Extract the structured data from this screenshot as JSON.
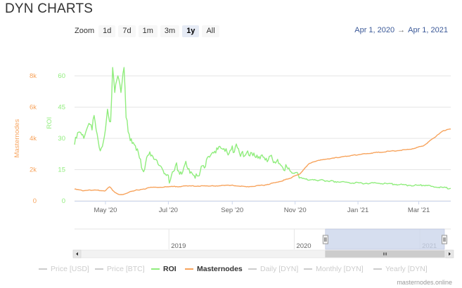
{
  "page_title": "DYN CHARTS",
  "zoom": {
    "label": "Zoom",
    "buttons": [
      "1d",
      "7d",
      "1m",
      "3m",
      "1y",
      "All"
    ],
    "active": "1y"
  },
  "range": {
    "from": "Apr 1, 2020",
    "arrow": "→",
    "to": "Apr 1, 2021"
  },
  "colors": {
    "roi": "#90ed7d",
    "masternodes": "#f7a35c",
    "navigator_mask": "#ccd6eb"
  },
  "chart_data": {
    "type": "line",
    "x_labels": [
      "May '20",
      "Jul '20",
      "Sep '20",
      "Nov '20",
      "Jan '21",
      "Mar '21"
    ],
    "x_range": [
      "2020-04-01",
      "2021-04-01"
    ],
    "y_axes": [
      {
        "id": "masternodes",
        "title": "Masternodes",
        "ticks": [
          "0",
          "2k",
          "4k",
          "6k",
          "8k"
        ],
        "range": [
          0,
          8000
        ]
      },
      {
        "id": "roi",
        "title": "ROI",
        "ticks": [
          "0",
          "15",
          "30",
          "45",
          "60"
        ],
        "range": [
          0,
          60
        ]
      }
    ],
    "grid": true,
    "series": [
      {
        "name": "ROI",
        "axis": "roi",
        "points": [
          [
            "2020-04-01",
            27
          ],
          [
            "2020-04-05",
            33
          ],
          [
            "2020-04-10",
            30
          ],
          [
            "2020-04-14",
            36
          ],
          [
            "2020-04-18",
            34
          ],
          [
            "2020-04-20",
            41
          ],
          [
            "2020-04-23",
            32
          ],
          [
            "2020-04-26",
            24
          ],
          [
            "2020-04-30",
            31
          ],
          [
            "2020-05-03",
            44
          ],
          [
            "2020-05-06",
            38
          ],
          [
            "2020-05-08",
            64
          ],
          [
            "2020-05-10",
            52
          ],
          [
            "2020-05-13",
            60
          ],
          [
            "2020-05-16",
            52
          ],
          [
            "2020-05-19",
            64
          ],
          [
            "2020-05-21",
            40
          ],
          [
            "2020-05-24",
            32
          ],
          [
            "2020-05-28",
            28
          ],
          [
            "2020-06-01",
            25
          ],
          [
            "2020-06-04",
            20
          ],
          [
            "2020-06-07",
            14
          ],
          [
            "2020-06-12",
            22
          ],
          [
            "2020-06-17",
            20
          ],
          [
            "2020-06-22",
            17
          ],
          [
            "2020-06-27",
            13
          ],
          [
            "2020-07-03",
            10
          ],
          [
            "2020-07-08",
            17
          ],
          [
            "2020-07-13",
            14
          ],
          [
            "2020-07-18",
            19
          ],
          [
            "2020-07-23",
            14
          ],
          [
            "2020-07-29",
            12
          ],
          [
            "2020-08-04",
            17
          ],
          [
            "2020-08-10",
            21
          ],
          [
            "2020-08-16",
            23
          ],
          [
            "2020-08-22",
            25
          ],
          [
            "2020-08-28",
            22
          ],
          [
            "2020-09-04",
            26
          ],
          [
            "2020-09-10",
            23
          ],
          [
            "2020-09-16",
            24
          ],
          [
            "2020-09-22",
            23
          ],
          [
            "2020-10-01",
            21
          ],
          [
            "2020-10-10",
            20
          ],
          [
            "2020-10-20",
            16
          ],
          [
            "2020-10-28",
            14
          ],
          [
            "2020-11-05",
            11
          ],
          [
            "2020-11-15",
            10
          ],
          [
            "2020-11-25",
            10
          ],
          [
            "2020-12-05",
            9.5
          ],
          [
            "2020-12-20",
            9
          ],
          [
            "2021-01-05",
            8.5
          ],
          [
            "2021-01-20",
            8.5
          ],
          [
            "2021-02-05",
            8
          ],
          [
            "2021-02-20",
            7.5
          ],
          [
            "2021-03-05",
            7.5
          ],
          [
            "2021-03-20",
            6.5
          ],
          [
            "2021-04-01",
            6
          ]
        ]
      },
      {
        "name": "Masternodes",
        "axis": "masternodes",
        "points": [
          [
            "2020-04-01",
            750
          ],
          [
            "2020-04-10",
            650
          ],
          [
            "2020-04-20",
            700
          ],
          [
            "2020-05-01",
            650
          ],
          [
            "2020-05-05",
            900
          ],
          [
            "2020-05-10",
            550
          ],
          [
            "2020-05-15",
            400
          ],
          [
            "2020-05-20",
            450
          ],
          [
            "2020-05-25",
            600
          ],
          [
            "2020-06-01",
            700
          ],
          [
            "2020-06-08",
            750
          ],
          [
            "2020-06-12",
            850
          ],
          [
            "2020-07-01",
            900
          ],
          [
            "2020-07-20",
            950
          ],
          [
            "2020-08-10",
            950
          ],
          [
            "2020-08-31",
            1000
          ],
          [
            "2020-09-15",
            900
          ],
          [
            "2020-10-01",
            1000
          ],
          [
            "2020-10-15",
            1200
          ],
          [
            "2020-10-25",
            1400
          ],
          [
            "2020-11-05",
            1700
          ],
          [
            "2020-11-15",
            2400
          ],
          [
            "2020-11-25",
            2600
          ],
          [
            "2020-12-05",
            2700
          ],
          [
            "2020-12-15",
            2800
          ],
          [
            "2020-12-25",
            2900
          ],
          [
            "2021-01-05",
            3000
          ],
          [
            "2021-01-20",
            3100
          ],
          [
            "2021-02-05",
            3200
          ],
          [
            "2021-02-20",
            3300
          ],
          [
            "2021-03-05",
            3500
          ],
          [
            "2021-03-15",
            4000
          ],
          [
            "2021-03-25",
            4500
          ],
          [
            "2021-04-01",
            4600
          ]
        ]
      }
    ],
    "navigator": {
      "labels": [
        "2019",
        "2020",
        "2021"
      ],
      "label_dates": [
        "2019-01-01",
        "2020-01-01",
        "2021-01-01"
      ],
      "range": [
        "2018-04-01",
        "2021-04-01"
      ],
      "selected": [
        "2020-04-01",
        "2021-04-01"
      ]
    },
    "legend": [
      {
        "name": "Price [USD]",
        "visible": false
      },
      {
        "name": "Price [BTC]",
        "visible": false
      },
      {
        "name": "ROI",
        "visible": true,
        "color": "#90ed7d"
      },
      {
        "name": "Masternodes",
        "visible": true,
        "color": "#f7a35c"
      },
      {
        "name": "Daily [DYN]",
        "visible": false
      },
      {
        "name": "Monthly [DYN]",
        "visible": false
      },
      {
        "name": "Yearly [DYN]",
        "visible": false
      }
    ]
  },
  "credit": "masternodes.online"
}
